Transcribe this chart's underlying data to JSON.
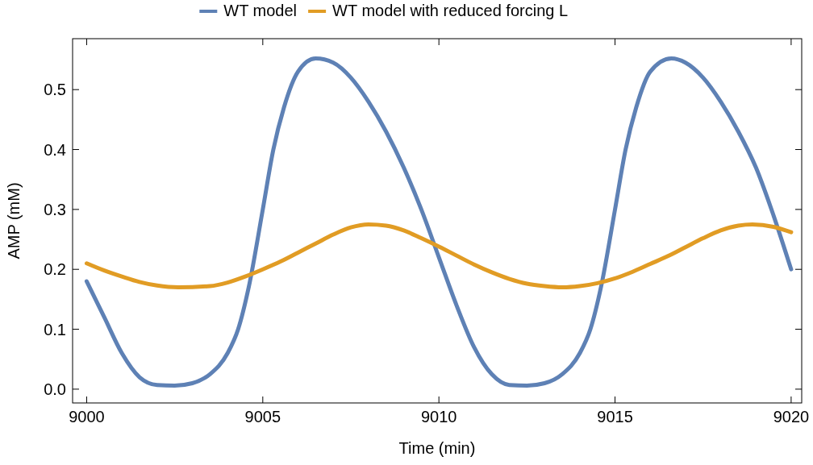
{
  "chart_data": {
    "type": "line",
    "xlabel": "Time (min)",
    "ylabel": "AMP (mM)",
    "xlim": [
      8999.6,
      9020.3
    ],
    "ylim": [
      -0.023,
      0.585
    ],
    "xticks": [
      9000,
      9005,
      9010,
      9015,
      9020
    ],
    "yticks": [
      {
        "value": 0,
        "label": "0.0"
      },
      0.1,
      0.2,
      0.3,
      0.4,
      0.5
    ],
    "legend": "top",
    "grid": false,
    "line_style": "solid",
    "series": [
      {
        "name": "WT model",
        "color": "#5e81b5",
        "x": [
          9000,
          9000.5,
          9001,
          9001.5,
          9002,
          9002.5,
          9003,
          9003.5,
          9004,
          9004.3,
          9004.6,
          9005,
          9005.3,
          9005.6,
          9006,
          9006.5,
          9007,
          9007.5,
          9008,
          9008.5,
          9009,
          9009.5,
          9010,
          9010.5,
          9011,
          9011.5,
          9012,
          9012.5,
          9013,
          9013.5,
          9014,
          9014.3,
          9014.6,
          9015,
          9015.3,
          9015.6,
          9016,
          9016.6,
          9017,
          9017.5,
          9018,
          9018.5,
          9019,
          9019.5,
          9020
        ],
        "values": [
          0.18,
          0.12,
          0.06,
          0.02,
          0.007,
          0.006,
          0.01,
          0.025,
          0.06,
          0.1,
          0.17,
          0.3,
          0.4,
          0.47,
          0.53,
          0.552,
          0.545,
          0.52,
          0.48,
          0.43,
          0.37,
          0.3,
          0.22,
          0.14,
          0.07,
          0.025,
          0.007,
          0.006,
          0.01,
          0.025,
          0.06,
          0.1,
          0.17,
          0.3,
          0.4,
          0.47,
          0.53,
          0.552,
          0.545,
          0.52,
          0.48,
          0.43,
          0.37,
          0.29,
          0.2
        ]
      },
      {
        "name": "WT model with reduced forcing L",
        "color": "#e19c24",
        "x": [
          9000,
          9000.5,
          9001,
          9001.5,
          9002,
          9002.6,
          9003.5,
          9004,
          9004.5,
          9005,
          9005.5,
          9006,
          9006.5,
          9007,
          9007.5,
          9008,
          9008.5,
          9009,
          9009.5,
          9010,
          9010.5,
          9011,
          9011.5,
          9012,
          9012.5,
          9013,
          9013.5,
          9014,
          9014.5,
          9015,
          9015.5,
          9016,
          9016.5,
          9017,
          9017.5,
          9018,
          9018.5,
          9018.9,
          9019.5,
          9020
        ],
        "values": [
          0.21,
          0.198,
          0.188,
          0.179,
          0.173,
          0.17,
          0.172,
          0.178,
          0.188,
          0.2,
          0.213,
          0.228,
          0.243,
          0.258,
          0.27,
          0.275,
          0.273,
          0.265,
          0.252,
          0.238,
          0.223,
          0.208,
          0.195,
          0.184,
          0.176,
          0.172,
          0.17,
          0.172,
          0.177,
          0.185,
          0.196,
          0.209,
          0.222,
          0.237,
          0.252,
          0.265,
          0.273,
          0.275,
          0.271,
          0.262
        ]
      }
    ]
  }
}
